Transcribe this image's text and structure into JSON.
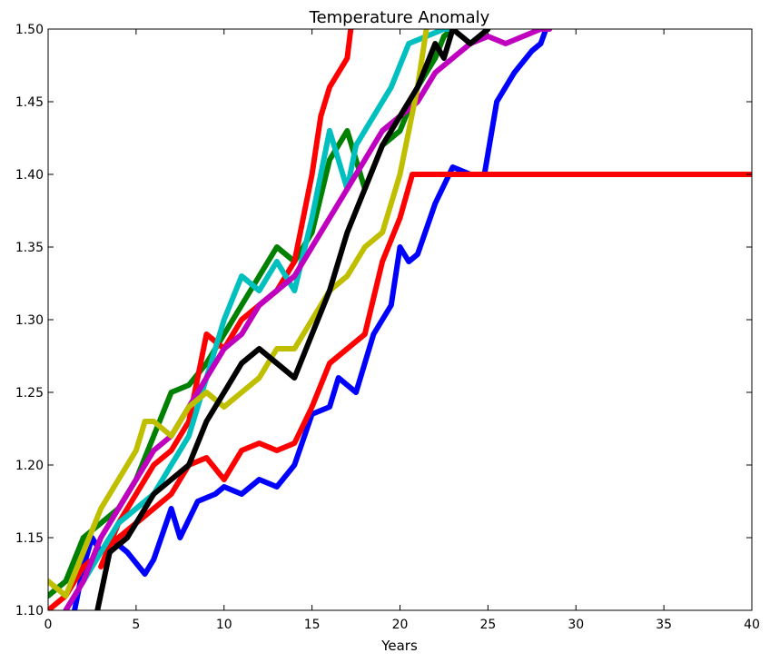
{
  "chart_data": {
    "type": "line",
    "title": "Temperature Anomaly",
    "xlabel": "Years",
    "ylabel": "",
    "xlim": [
      0,
      40
    ],
    "ylim": [
      1.1,
      1.5
    ],
    "xticks": [
      "0",
      "5",
      "10",
      "15",
      "20",
      "25",
      "30",
      "35",
      "40"
    ],
    "yticks": [
      "1.10",
      "1.15",
      "1.20",
      "1.25",
      "1.30",
      "1.35",
      "1.40",
      "1.45",
      "1.50"
    ],
    "grid": false,
    "legend": "none",
    "series": [
      {
        "color": "#0000ff",
        "x": [
          1.5,
          2.0,
          2.5,
          3.0,
          3.5,
          4.5,
          5.5,
          6.0,
          7.0,
          7.5,
          8.5,
          9.5,
          10.0,
          11.0,
          12.0,
          13.0,
          14.0,
          15.0,
          16.0,
          16.5,
          17.5,
          18.5,
          19.5,
          20.0,
          20.5,
          21.0,
          22.0,
          23.0,
          24.0,
          24.8,
          25.5,
          26.5,
          27.5,
          28.0,
          28.3
        ],
        "y": [
          1.1,
          1.13,
          1.15,
          1.14,
          1.15,
          1.14,
          1.125,
          1.135,
          1.17,
          1.15,
          1.175,
          1.18,
          1.185,
          1.18,
          1.19,
          1.185,
          1.2,
          1.235,
          1.24,
          1.26,
          1.25,
          1.29,
          1.31,
          1.35,
          1.34,
          1.345,
          1.38,
          1.405,
          1.4,
          1.4,
          1.45,
          1.47,
          1.485,
          1.49,
          1.5
        ]
      },
      {
        "color": "#008000",
        "x": [
          0.0,
          1.0,
          2.0,
          3.0,
          4.0,
          5.0,
          6.0,
          7.0,
          8.0,
          9.0,
          10.0,
          11.0,
          12.0,
          13.0,
          14.0,
          15.0,
          16.0,
          17.0,
          18.0,
          19.0,
          20.0,
          21.0,
          22.0,
          22.5,
          23.0
        ],
        "y": [
          1.11,
          1.12,
          1.15,
          1.16,
          1.17,
          1.19,
          1.22,
          1.25,
          1.255,
          1.27,
          1.29,
          1.31,
          1.33,
          1.35,
          1.34,
          1.36,
          1.41,
          1.43,
          1.39,
          1.42,
          1.43,
          1.46,
          1.48,
          1.495,
          1.5
        ]
      },
      {
        "color": "#ff0000",
        "x": [
          0.0,
          1.0,
          2.0,
          3.0,
          4.0,
          5.0,
          6.0,
          7.0,
          8.0,
          9.0,
          10.0,
          11.0,
          12.0,
          13.0,
          14.0,
          15.0,
          16.0,
          17.0,
          18.0,
          19.0,
          20.0,
          20.7,
          22.0,
          25.0,
          28.0,
          32.0,
          36.0,
          40.0
        ],
        "y": [
          1.1,
          1.11,
          1.13,
          1.14,
          1.15,
          1.16,
          1.17,
          1.18,
          1.2,
          1.205,
          1.19,
          1.21,
          1.215,
          1.21,
          1.215,
          1.24,
          1.27,
          1.28,
          1.29,
          1.34,
          1.37,
          1.4,
          1.4,
          1.4,
          1.4,
          1.4,
          1.4,
          1.4
        ]
      },
      {
        "color": "#ff0000",
        "x": [
          3.0,
          4.0,
          5.0,
          6.0,
          7.0,
          8.0,
          9.0,
          10.0,
          11.0,
          12.0,
          13.0,
          14.0,
          15.0,
          15.5,
          16.0,
          16.5,
          17.0,
          17.2
        ],
        "y": [
          1.13,
          1.16,
          1.18,
          1.2,
          1.21,
          1.23,
          1.29,
          1.28,
          1.3,
          1.31,
          1.32,
          1.34,
          1.4,
          1.44,
          1.46,
          1.47,
          1.48,
          1.5
        ]
      },
      {
        "color": "#00bfbf",
        "x": [
          1.0,
          2.0,
          3.0,
          4.0,
          5.0,
          6.0,
          7.0,
          8.0,
          9.0,
          10.0,
          11.0,
          12.0,
          13.0,
          14.0,
          15.0,
          16.0,
          17.0,
          17.5,
          18.5,
          19.5,
          20.5,
          21.5,
          22.5,
          23.0
        ],
        "y": [
          1.1,
          1.12,
          1.14,
          1.16,
          1.17,
          1.18,
          1.2,
          1.22,
          1.26,
          1.3,
          1.33,
          1.32,
          1.34,
          1.32,
          1.37,
          1.43,
          1.39,
          1.42,
          1.44,
          1.46,
          1.49,
          1.495,
          1.5,
          1.5
        ]
      },
      {
        "color": "#bf00bf",
        "x": [
          1.0,
          2.0,
          3.0,
          4.0,
          5.0,
          6.0,
          7.0,
          8.0,
          9.0,
          10.0,
          11.0,
          12.0,
          13.0,
          14.0,
          15.0,
          16.0,
          17.0,
          18.0,
          19.0,
          20.0,
          21.0,
          22.0,
          23.0,
          24.0,
          25.0,
          26.0,
          27.0,
          28.0,
          28.5
        ],
        "y": [
          1.1,
          1.12,
          1.15,
          1.17,
          1.19,
          1.21,
          1.22,
          1.24,
          1.26,
          1.28,
          1.29,
          1.31,
          1.32,
          1.33,
          1.35,
          1.37,
          1.39,
          1.41,
          1.43,
          1.44,
          1.45,
          1.47,
          1.48,
          1.49,
          1.495,
          1.49,
          1.495,
          1.5,
          1.5
        ]
      },
      {
        "color": "#bfbf00",
        "x": [
          0.0,
          1.0,
          2.0,
          3.0,
          4.0,
          5.0,
          5.5,
          6.0,
          7.0,
          8.0,
          9.0,
          10.0,
          11.0,
          12.0,
          13.0,
          14.0,
          15.0,
          16.0,
          17.0,
          18.0,
          19.0,
          20.0,
          21.0,
          21.5
        ],
        "y": [
          1.12,
          1.11,
          1.14,
          1.17,
          1.19,
          1.21,
          1.23,
          1.23,
          1.22,
          1.24,
          1.25,
          1.24,
          1.25,
          1.26,
          1.28,
          1.28,
          1.3,
          1.32,
          1.33,
          1.35,
          1.36,
          1.4,
          1.46,
          1.5
        ]
      },
      {
        "color": "#000000",
        "x": [
          2.8,
          3.5,
          4.5,
          5.5,
          6.0,
          7.0,
          8.0,
          9.0,
          10.0,
          11.0,
          12.0,
          13.0,
          14.0,
          15.0,
          16.0,
          17.0,
          18.0,
          19.0,
          20.0,
          21.0,
          22.0,
          22.5,
          23.0,
          24.0,
          25.0
        ],
        "y": [
          1.1,
          1.14,
          1.15,
          1.17,
          1.18,
          1.19,
          1.2,
          1.23,
          1.25,
          1.27,
          1.28,
          1.27,
          1.26,
          1.29,
          1.32,
          1.36,
          1.39,
          1.42,
          1.44,
          1.46,
          1.49,
          1.48,
          1.5,
          1.49,
          1.5
        ]
      }
    ]
  }
}
